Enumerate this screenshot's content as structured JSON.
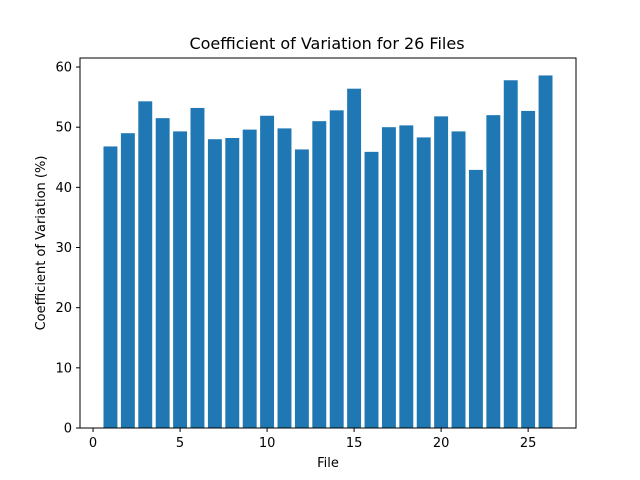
{
  "chart_data": {
    "type": "bar",
    "title": "Coefficient of Variation for 26 Files",
    "xlabel": "File",
    "ylabel": "Coefficient of Variation (%)",
    "x": [
      1,
      2,
      3,
      4,
      5,
      6,
      7,
      8,
      9,
      10,
      11,
      12,
      13,
      14,
      15,
      16,
      17,
      18,
      19,
      20,
      21,
      22,
      23,
      24,
      25,
      26
    ],
    "values": [
      46.8,
      49.0,
      54.3,
      51.5,
      49.3,
      53.2,
      48.0,
      48.2,
      49.6,
      51.9,
      49.8,
      46.3,
      51.0,
      52.8,
      56.4,
      45.9,
      50.0,
      50.3,
      48.3,
      51.8,
      49.3,
      42.9,
      52.0,
      57.8,
      52.7,
      58.6
    ],
    "xlim": [
      -0.75,
      27.75
    ],
    "ylim": [
      0,
      61.5
    ],
    "xticks": [
      0,
      5,
      10,
      15,
      20,
      25
    ],
    "yticks": [
      0,
      10,
      20,
      30,
      40,
      50,
      60
    ],
    "bar_color": "#1f77b4",
    "grid": false,
    "legend": "none"
  }
}
